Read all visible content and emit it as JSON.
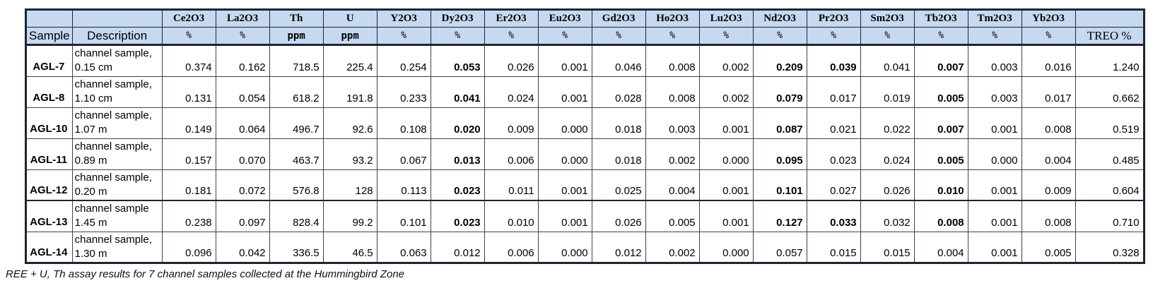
{
  "caption": "REE + U, Th assay results for 7 channel samples collected at the Hummingbird Zone",
  "colors": {
    "header_bg": "#c7d9f1",
    "border_dark": "#1d2433"
  },
  "table": {
    "corner_labels": {
      "sample": "Sample",
      "description": "Description",
      "treo": "TREO %"
    },
    "columns": [
      {
        "name": "Ce2O3",
        "unit": "%"
      },
      {
        "name": "La2O3",
        "unit": "%"
      },
      {
        "name": "Th",
        "unit": "ppm"
      },
      {
        "name": "U",
        "unit": "ppm"
      },
      {
        "name": "Y2O3",
        "unit": "%"
      },
      {
        "name": "Dy2O3",
        "unit": "%"
      },
      {
        "name": "Er2O3",
        "unit": "%"
      },
      {
        "name": "Eu2O3",
        "unit": "%"
      },
      {
        "name": "Gd2O3",
        "unit": "%"
      },
      {
        "name": "Ho2O3",
        "unit": "%"
      },
      {
        "name": "Lu2O3",
        "unit": "%"
      },
      {
        "name": "Nd2O3",
        "unit": "%"
      },
      {
        "name": "Pr2O3",
        "unit": "%"
      },
      {
        "name": "Sm2O3",
        "unit": "%"
      },
      {
        "name": "Tb2O3",
        "unit": "%"
      },
      {
        "name": "Tm2O3",
        "unit": "%"
      },
      {
        "name": "Yb2O3",
        "unit": "%"
      }
    ],
    "rows": [
      {
        "sample": "AGL-7",
        "description": [
          "channel sample,",
          "0.15 cm"
        ],
        "values": [
          "0.374",
          "0.162",
          "718.5",
          "225.4",
          "0.254",
          "0.053",
          "0.026",
          "0.001",
          "0.046",
          "0.008",
          "0.002",
          "0.209",
          "0.039",
          "0.041",
          "0.007",
          "0.003",
          "0.016"
        ],
        "bold": [
          5,
          11,
          12,
          14
        ],
        "treo": "1.240"
      },
      {
        "sample": "AGL-8",
        "description": [
          "channel sample,",
          "1.10 cm"
        ],
        "values": [
          "0.131",
          "0.054",
          "618.2",
          "191.8",
          "0.233",
          "0.041",
          "0.024",
          "0.001",
          "0.028",
          "0.008",
          "0.002",
          "0.079",
          "0.017",
          "0.019",
          "0.005",
          "0.003",
          "0.017"
        ],
        "bold": [
          5,
          11,
          14
        ],
        "treo": "0.662"
      },
      {
        "sample": "AGL-10",
        "description": [
          "channel sample,",
          "1.07 m"
        ],
        "values": [
          "0.149",
          "0.064",
          "496.7",
          "92.6",
          "0.108",
          "0.020",
          "0.009",
          "0.000",
          "0.018",
          "0.003",
          "0.001",
          "0.087",
          "0.021",
          "0.022",
          "0.007",
          "0.001",
          "0.008"
        ],
        "bold": [
          5,
          11,
          14
        ],
        "treo": "0.519"
      },
      {
        "sample": "AGL-11",
        "description": [
          "channel sample,",
          "0.89 m"
        ],
        "values": [
          "0.157",
          "0.070",
          "463.7",
          "93.2",
          "0.067",
          "0.013",
          "0.006",
          "0.000",
          "0.018",
          "0.002",
          "0.000",
          "0.095",
          "0.023",
          "0.024",
          "0.005",
          "0.000",
          "0.004"
        ],
        "bold": [
          5,
          11,
          14
        ],
        "treo": "0.485"
      },
      {
        "sample": "AGL-12",
        "description": [
          "channel sample,",
          "0.20 m"
        ],
        "values": [
          "0.181",
          "0.072",
          "576.8",
          "128",
          "0.113",
          "0.023",
          "0.011",
          "0.001",
          "0.025",
          "0.004",
          "0.001",
          "0.101",
          "0.027",
          "0.026",
          "0.010",
          "0.001",
          "0.009"
        ],
        "bold": [
          5,
          11,
          14
        ],
        "treo": "0.604"
      },
      {
        "sample": "AGL-13",
        "description": [
          "channel sample",
          "1.45 m"
        ],
        "values": [
          "0.238",
          "0.097",
          "828.4",
          "99.2",
          "0.101",
          "0.023",
          "0.010",
          "0.001",
          "0.026",
          "0.005",
          "0.001",
          "0.127",
          "0.033",
          "0.032",
          "0.008",
          "0.001",
          "0.008"
        ],
        "bold": [
          5,
          11,
          12,
          14
        ],
        "treo": "0.710"
      },
      {
        "sample": "AGL-14",
        "description": [
          "channel sample,",
          "1.30 m"
        ],
        "values": [
          "0.096",
          "0.042",
          "336.5",
          "46.5",
          "0.063",
          "0.012",
          "0.006",
          "0.000",
          "0.012",
          "0.002",
          "0.000",
          "0.057",
          "0.015",
          "0.015",
          "0.004",
          "0.001",
          "0.005"
        ],
        "bold": [],
        "treo": "0.328"
      }
    ]
  }
}
